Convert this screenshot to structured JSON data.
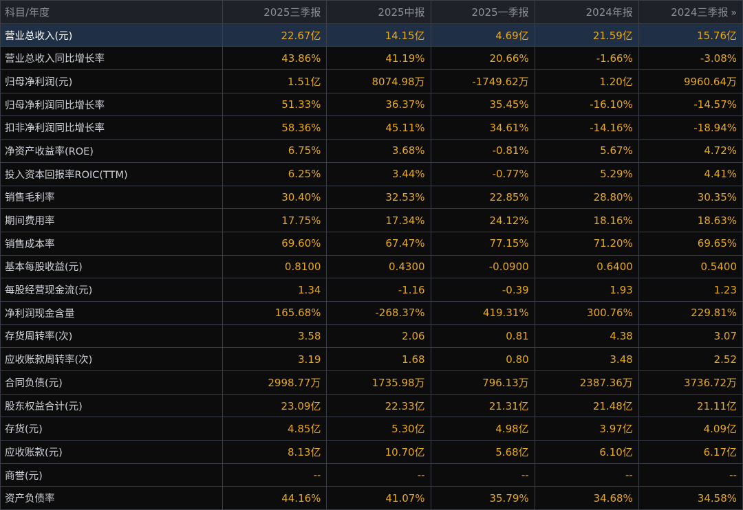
{
  "table": {
    "header_label": "科目/年度",
    "more_glyph": "»",
    "columns": [
      "2025三季报",
      "2025中报",
      "2025一季报",
      "2024年报",
      "2024三季报"
    ],
    "selected_row": 0,
    "rows": [
      {
        "label": "营业总收入(元)",
        "values": [
          "22.67亿",
          "14.15亿",
          "4.69亿",
          "21.59亿",
          "15.76亿"
        ]
      },
      {
        "label": "营业总收入同比增长率",
        "values": [
          "43.86%",
          "41.19%",
          "20.66%",
          "-1.66%",
          "-3.08%"
        ]
      },
      {
        "label": "归母净利润(元)",
        "values": [
          "1.51亿",
          "8074.98万",
          "-1749.62万",
          "1.20亿",
          "9960.64万"
        ]
      },
      {
        "label": "归母净利润同比增长率",
        "values": [
          "51.33%",
          "36.37%",
          "35.45%",
          "-16.10%",
          "-14.57%"
        ]
      },
      {
        "label": "扣非净利润同比增长率",
        "values": [
          "58.36%",
          "45.11%",
          "34.61%",
          "-14.16%",
          "-18.94%"
        ]
      },
      {
        "label": "净资产收益率(ROE)",
        "values": [
          "6.75%",
          "3.68%",
          "-0.81%",
          "5.67%",
          "4.72%"
        ]
      },
      {
        "label": "投入资本回报率ROIC(TTM)",
        "values": [
          "6.25%",
          "3.44%",
          "-0.77%",
          "5.29%",
          "4.41%"
        ]
      },
      {
        "label": "销售毛利率",
        "values": [
          "30.40%",
          "32.53%",
          "22.85%",
          "28.80%",
          "30.35%"
        ]
      },
      {
        "label": "期间费用率",
        "values": [
          "17.75%",
          "17.34%",
          "24.12%",
          "18.16%",
          "18.63%"
        ]
      },
      {
        "label": "销售成本率",
        "values": [
          "69.60%",
          "67.47%",
          "77.15%",
          "71.20%",
          "69.65%"
        ]
      },
      {
        "label": "基本每股收益(元)",
        "values": [
          "0.8100",
          "0.4300",
          "-0.0900",
          "0.6400",
          "0.5400"
        ]
      },
      {
        "label": "每股经营现金流(元)",
        "values": [
          "1.34",
          "-1.16",
          "-0.39",
          "1.93",
          "1.23"
        ]
      },
      {
        "label": "净利润现金含量",
        "values": [
          "165.68%",
          "-268.37%",
          "419.31%",
          "300.76%",
          "229.81%"
        ]
      },
      {
        "label": "存货周转率(次)",
        "values": [
          "3.58",
          "2.06",
          "0.81",
          "4.38",
          "3.07"
        ]
      },
      {
        "label": "应收账款周转率(次)",
        "values": [
          "3.19",
          "1.68",
          "0.80",
          "3.48",
          "2.52"
        ]
      },
      {
        "label": "合同负债(元)",
        "values": [
          "2998.77万",
          "1735.98万",
          "796.13万",
          "2387.36万",
          "3736.72万"
        ]
      },
      {
        "label": "股东权益合计(元)",
        "values": [
          "23.09亿",
          "22.33亿",
          "21.31亿",
          "21.48亿",
          "21.11亿"
        ]
      },
      {
        "label": "存货(元)",
        "values": [
          "4.85亿",
          "5.30亿",
          "4.98亿",
          "3.97亿",
          "4.09亿"
        ]
      },
      {
        "label": "应收账款(元)",
        "values": [
          "8.13亿",
          "10.70亿",
          "5.68亿",
          "6.10亿",
          "6.17亿"
        ]
      },
      {
        "label": "商誉(元)",
        "values": [
          "--",
          "--",
          "--",
          "--",
          "--"
        ]
      },
      {
        "label": "资产负债率",
        "values": [
          "44.16%",
          "41.07%",
          "35.79%",
          "34.68%",
          "34.58%"
        ]
      }
    ]
  },
  "colors": {
    "background": "#0c0c0c",
    "header_bg": "#1e2228",
    "header_text": "#8a8f97",
    "grid_line": "#3a3f47",
    "label_text": "#cfd3d9",
    "value_text": "#e7a91f",
    "selected_row_bg": "#1f2f45"
  }
}
